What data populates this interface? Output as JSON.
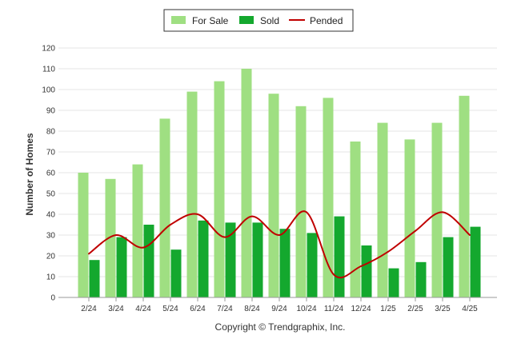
{
  "chart_data": {
    "type": "bar",
    "categories": [
      "2/24",
      "3/24",
      "4/24",
      "5/24",
      "6/24",
      "7/24",
      "8/24",
      "9/24",
      "10/24",
      "11/24",
      "12/24",
      "1/25",
      "2/25",
      "3/25",
      "4/25"
    ],
    "series": [
      {
        "name": "For Sale",
        "type": "bar",
        "color": "#9fdf82",
        "values": [
          60,
          57,
          64,
          86,
          99,
          104,
          110,
          98,
          92,
          96,
          75,
          84,
          76,
          84,
          97
        ]
      },
      {
        "name": "Sold",
        "type": "bar",
        "color": "#14a82e",
        "values": [
          18,
          29,
          35,
          23,
          37,
          36,
          36,
          33,
          31,
          39,
          25,
          14,
          17,
          29,
          34
        ]
      },
      {
        "name": "Pended",
        "type": "line",
        "color": "#c00000",
        "values": [
          21,
          30,
          24,
          35,
          40,
          29,
          39,
          30,
          41,
          11,
          15,
          22,
          32,
          41,
          30
        ]
      }
    ],
    "ylabel": "Number of Homes",
    "xlabel": "",
    "ylim": [
      0,
      120
    ],
    "yticks": [
      0,
      10,
      20,
      30,
      40,
      50,
      60,
      70,
      80,
      90,
      100,
      110,
      120
    ],
    "grid": true,
    "legend": "top-center"
  },
  "credit": "Copyright © Trendgraphix, Inc."
}
